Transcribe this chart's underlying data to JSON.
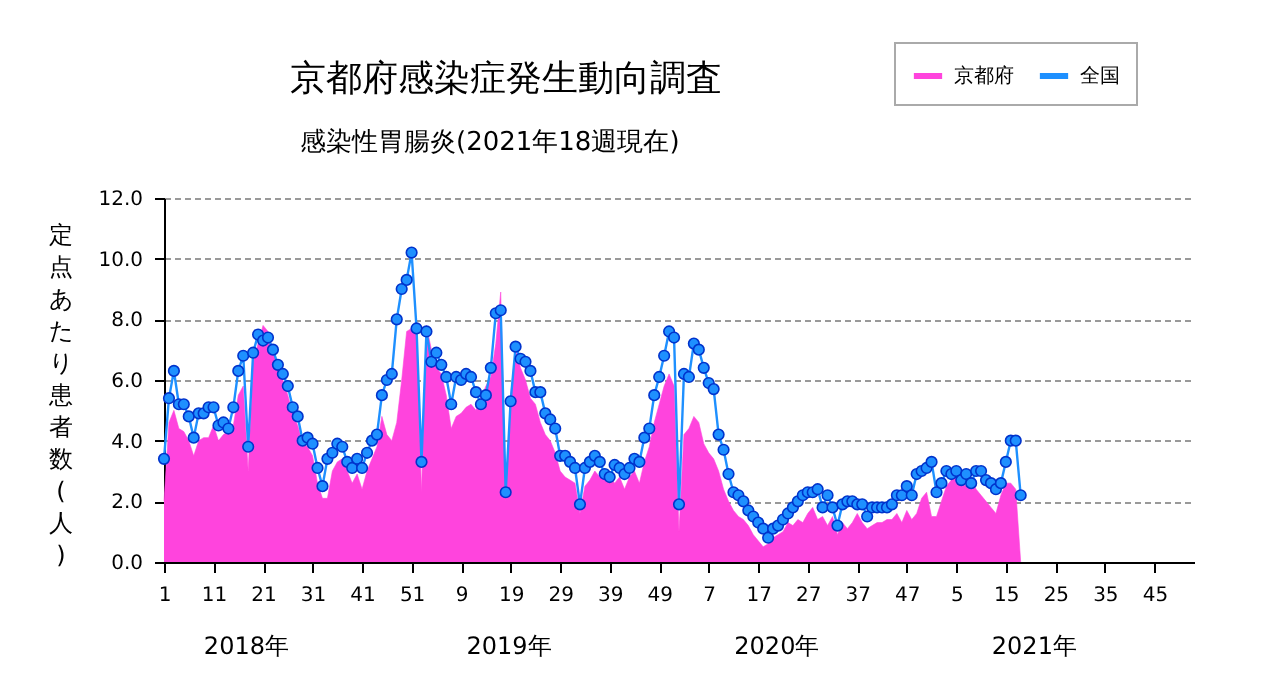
{
  "chart_data": {
    "type": "area",
    "title": "京都府感染症発生動向調査",
    "subtitle": "感染性胃腸炎(2021年18週現在)",
    "ylabel": "定点あたり患者数(人)",
    "annotations": [
      "2018年",
      "2019年",
      "2020年",
      "2021年"
    ],
    "categories": [
      "1",
      null,
      null,
      null,
      null,
      null,
      null,
      null,
      null,
      null,
      "11",
      null,
      null,
      null,
      null,
      null,
      null,
      null,
      null,
      null,
      "21",
      null,
      null,
      null,
      null,
      null,
      null,
      null,
      null,
      null,
      "31",
      null,
      null,
      null,
      null,
      null,
      null,
      null,
      null,
      null,
      "41",
      null,
      null,
      null,
      null,
      null,
      null,
      null,
      null,
      null,
      "51",
      null,
      null,
      null,
      null,
      null,
      null,
      null,
      null,
      null,
      "9",
      null,
      null,
      null,
      null,
      null,
      null,
      null,
      null,
      null,
      "19",
      null,
      null,
      null,
      null,
      null,
      null,
      null,
      null,
      null,
      "29",
      null,
      null,
      null,
      null,
      null,
      null,
      null,
      null,
      null,
      "39",
      null,
      null,
      null,
      null,
      null,
      null,
      null,
      null,
      null,
      "49",
      null,
      null,
      null,
      null,
      null,
      null,
      null,
      null,
      null,
      "7",
      null,
      null,
      null,
      null,
      null,
      null,
      null,
      null,
      null,
      "17",
      null,
      null,
      null,
      null,
      null,
      null,
      null,
      null,
      null,
      "27",
      null,
      null,
      null,
      null,
      null,
      null,
      null,
      null,
      null,
      "37",
      null,
      null,
      null,
      null,
      null,
      null,
      null,
      null,
      null,
      "47",
      null,
      null,
      null,
      null,
      null,
      null,
      null,
      null,
      null,
      "5",
      null,
      null,
      null,
      null,
      null,
      null,
      null,
      null,
      null,
      "15",
      null,
      null,
      null,
      null,
      null,
      null,
      null,
      null,
      null,
      "25",
      null,
      null,
      null,
      null,
      null,
      null,
      null,
      null,
      null,
      "35",
      null,
      null,
      null,
      null,
      null,
      null,
      null,
      null,
      null,
      "45",
      null,
      null,
      null,
      null,
      null,
      null,
      null,
      null
    ],
    "series": [
      {
        "name": "京都府",
        "color": "#ff44dd",
        "values": [
          2.0,
          4.6,
          5.0,
          4.4,
          4.3,
          4.0,
          3.5,
          4.0,
          4.1,
          4.1,
          4.5,
          4.0,
          4.2,
          4.3,
          4.5,
          5.5,
          5.8,
          3.0,
          6.6,
          7.2,
          7.8,
          7.6,
          7.0,
          6.5,
          6.0,
          5.5,
          4.9,
          4.5,
          3.9,
          3.8,
          3.5,
          2.6,
          2.1,
          2.1,
          3.0,
          3.3,
          3.4,
          3.0,
          2.6,
          2.9,
          2.4,
          3.0,
          3.4,
          3.8,
          4.8,
          4.2,
          4.0,
          4.6,
          6.0,
          7.6,
          7.7,
          7.7,
          2.3,
          7.8,
          7.0,
          6.4,
          6.2,
          5.5,
          4.4,
          4.8,
          4.9,
          5.1,
          5.2,
          5.0,
          5.4,
          5.8,
          6.1,
          7.2,
          8.9,
          2.0,
          5.5,
          7.0,
          6.4,
          6.0,
          5.4,
          5.2,
          4.6,
          4.2,
          4.0,
          3.6,
          3.0,
          2.8,
          2.7,
          2.6,
          1.6,
          2.5,
          2.7,
          3.0,
          2.8,
          2.7,
          2.8,
          2.6,
          2.8,
          2.4,
          2.8,
          3.0,
          2.6,
          3.3,
          3.8,
          4.6,
          5.2,
          5.8,
          6.2,
          5.8,
          1.0,
          4.2,
          4.4,
          4.8,
          4.6,
          3.9,
          3.6,
          3.4,
          3.0,
          2.4,
          2.0,
          1.7,
          1.5,
          1.4,
          1.2,
          0.9,
          0.7,
          0.5,
          0.6,
          0.8,
          0.9,
          1.0,
          1.3,
          1.2,
          1.4,
          1.3,
          1.6,
          1.8,
          1.4,
          1.5,
          1.2,
          1.5,
          0.9,
          1.3,
          1.1,
          1.3,
          1.6,
          1.3,
          1.1,
          1.2,
          1.3,
          1.3,
          1.4,
          1.4,
          1.6,
          1.3,
          1.7,
          1.4,
          1.6,
          2.1,
          2.3,
          1.5,
          1.5,
          2.0,
          2.5,
          2.7,
          2.8,
          2.6,
          2.5,
          2.7,
          2.4,
          2.2,
          2.0,
          1.8,
          1.6,
          2.2,
          2.6,
          2.6,
          2.4,
          0.0,
          null,
          null,
          null,
          null,
          null,
          null,
          null,
          null,
          null,
          null,
          null,
          null,
          null,
          null,
          null,
          null,
          null,
          null,
          null,
          null,
          null,
          null,
          null,
          null,
          null,
          null,
          null,
          null,
          null,
          null,
          null,
          null,
          null,
          null,
          null
        ]
      },
      {
        "name": "全国",
        "type": "line",
        "marker": "circle",
        "color": "#1e90ff",
        "values": [
          3.4,
          5.4,
          6.3,
          5.2,
          5.2,
          4.8,
          4.1,
          4.9,
          4.9,
          5.1,
          5.1,
          4.5,
          4.6,
          4.4,
          5.1,
          6.3,
          6.8,
          3.8,
          6.9,
          7.5,
          7.3,
          7.4,
          7.0,
          6.5,
          6.2,
          5.8,
          5.1,
          4.8,
          4.0,
          4.1,
          3.9,
          3.1,
          2.5,
          3.4,
          3.6,
          3.9,
          3.8,
          3.3,
          3.1,
          3.4,
          3.1,
          3.6,
          4.0,
          4.2,
          5.5,
          6.0,
          6.2,
          8.0,
          9.0,
          9.3,
          10.2,
          7.7,
          3.3,
          7.6,
          6.6,
          6.9,
          6.5,
          6.1,
          5.2,
          6.1,
          6.0,
          6.2,
          6.1,
          5.6,
          5.2,
          5.5,
          6.4,
          8.2,
          8.3,
          2.3,
          5.3,
          7.1,
          6.7,
          6.6,
          6.3,
          5.6,
          5.6,
          4.9,
          4.7,
          4.4,
          3.5,
          3.5,
          3.3,
          3.1,
          1.9,
          3.1,
          3.3,
          3.5,
          3.3,
          2.9,
          2.8,
          3.2,
          3.1,
          2.9,
          3.1,
          3.4,
          3.3,
          4.1,
          4.4,
          5.5,
          6.1,
          6.8,
          7.6,
          7.4,
          1.9,
          6.2,
          6.1,
          7.2,
          7.0,
          6.4,
          5.9,
          5.7,
          4.2,
          3.7,
          2.9,
          2.3,
          2.2,
          2.0,
          1.7,
          1.5,
          1.3,
          1.1,
          0.8,
          1.1,
          1.2,
          1.4,
          1.6,
          1.8,
          2.0,
          2.2,
          2.3,
          2.3,
          2.4,
          1.8,
          2.2,
          1.8,
          1.2,
          1.9,
          2.0,
          2.0,
          1.9,
          1.9,
          1.5,
          1.8,
          1.8,
          1.8,
          1.8,
          1.9,
          2.2,
          2.2,
          2.5,
          2.2,
          2.9,
          3.0,
          3.1,
          3.3,
          2.3,
          2.6,
          3.0,
          2.9,
          3.0,
          2.7,
          2.9,
          2.6,
          3.0,
          3.0,
          2.7,
          2.6,
          2.4,
          2.6,
          3.3,
          4.0,
          4.0,
          2.2,
          null,
          null,
          null,
          null,
          null,
          null,
          null,
          null,
          null,
          null,
          null,
          null,
          null,
          null,
          null,
          null,
          null,
          null,
          null,
          null,
          null,
          null,
          null,
          null,
          null,
          null,
          null,
          null,
          null,
          null,
          null,
          null,
          null,
          null,
          null
        ]
      }
    ],
    "ylim": [
      0,
      12
    ],
    "yticks": [
      {
        "value": 0,
        "label": "0.0"
      },
      {
        "value": 2,
        "label": "2.0"
      },
      {
        "value": 4,
        "label": "4.0"
      },
      {
        "value": 6,
        "label": "6.0"
      },
      {
        "value": 8,
        "label": "8.0"
      },
      {
        "value": 10,
        "label": "10.0"
      },
      {
        "value": 12,
        "label": "12.0"
      }
    ],
    "grid": "y",
    "legend": "top right",
    "line_style": "solid"
  }
}
